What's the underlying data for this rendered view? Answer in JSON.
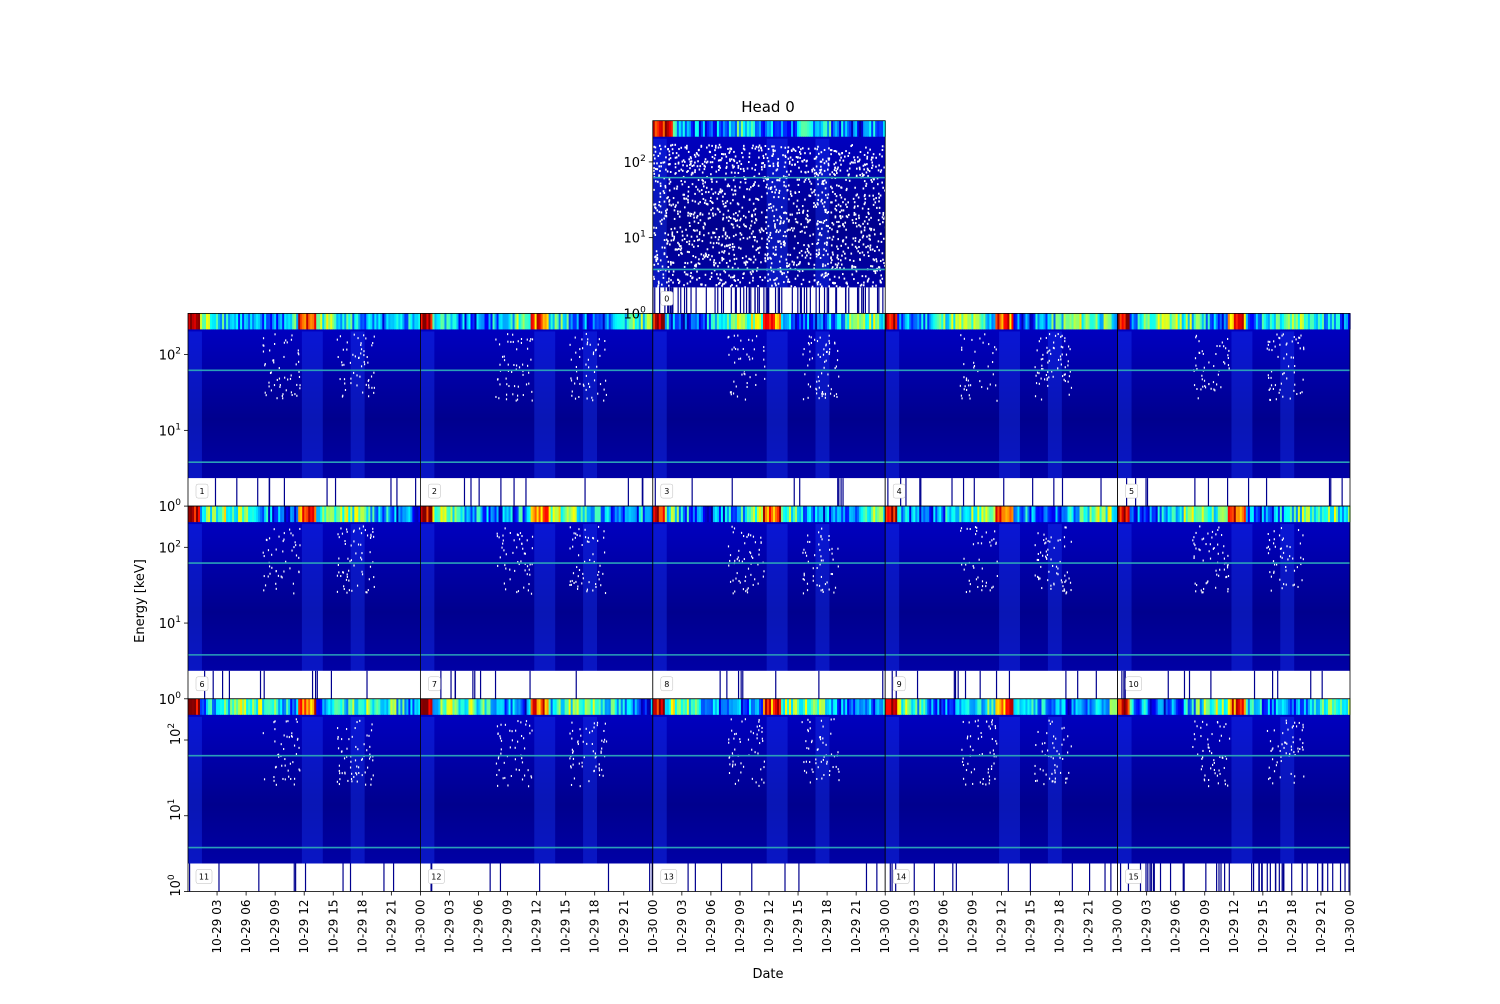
{
  "chart_data": {
    "type": "heatmap",
    "title": "Head 0",
    "xlabel": "Date",
    "ylabel": "Energy [keV]",
    "yscale": "log",
    "ylim": [
      1,
      350
    ],
    "y_tick_labels": [
      "10^0",
      "10^1",
      "10^2"
    ],
    "y_tick_values": [
      1,
      10,
      100
    ],
    "x_tick_labels": [
      "10-29 03",
      "10-29 06",
      "10-29 09",
      "10-29 12",
      "10-29 15",
      "10-29 18",
      "10-29 21",
      "10-30 00"
    ],
    "x_range": [
      "10-29 00",
      "10-30 00"
    ],
    "colormap": "jet",
    "reference_lines_keV": [
      3.8,
      62
    ],
    "reference_line_color": "#2aa0b8",
    "panels": [
      {
        "label": "0"
      },
      {
        "label": "1"
      },
      {
        "label": "2"
      },
      {
        "label": "3"
      },
      {
        "label": "4"
      },
      {
        "label": "5"
      },
      {
        "label": "6"
      },
      {
        "label": "7"
      },
      {
        "label": "8"
      },
      {
        "label": "9"
      },
      {
        "label": "10"
      },
      {
        "label": "11"
      },
      {
        "label": "12"
      },
      {
        "label": "13"
      },
      {
        "label": "14"
      },
      {
        "label": "15"
      }
    ]
  }
}
